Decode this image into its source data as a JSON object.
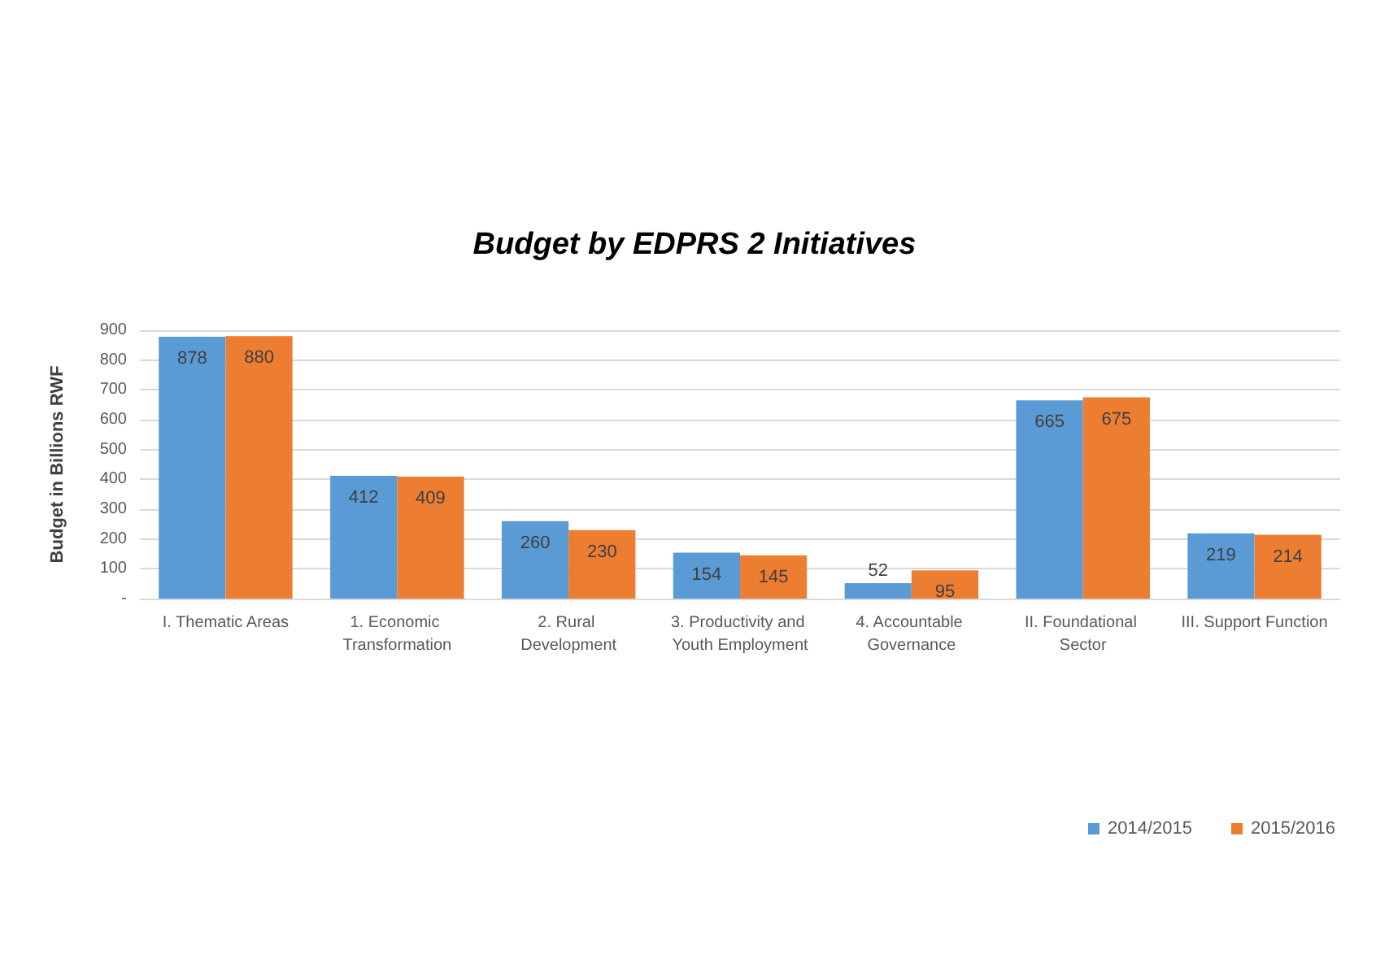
{
  "chart_data": {
    "type": "bar",
    "title": "Budget by EDPRS 2 Initiatives",
    "ylabel": "Budget in Billions RWF",
    "categories": [
      "I. Thematic Areas",
      "1. Economic Transformation",
      "2. Rural Development",
      "3. Productivity and Youth Employment",
      "4. Accountable Governance",
      "II. Foundational Sector",
      "III. Support Function"
    ],
    "series": [
      {
        "name": "2014/2015",
        "color": "#5b9bd5",
        "values": [
          878,
          412,
          260,
          154,
          52,
          665,
          219
        ]
      },
      {
        "name": "2015/2016",
        "color": "#ed7d31",
        "values": [
          880,
          409,
          230,
          145,
          95,
          675,
          214
        ]
      }
    ],
    "ylim": [
      0,
      900
    ],
    "yticks": [
      {
        "value": 0,
        "label": "-"
      },
      100,
      200,
      300,
      400,
      500,
      600,
      700,
      800,
      900
    ],
    "grid": "y",
    "legend": "bottom right",
    "data_labels": true
  }
}
